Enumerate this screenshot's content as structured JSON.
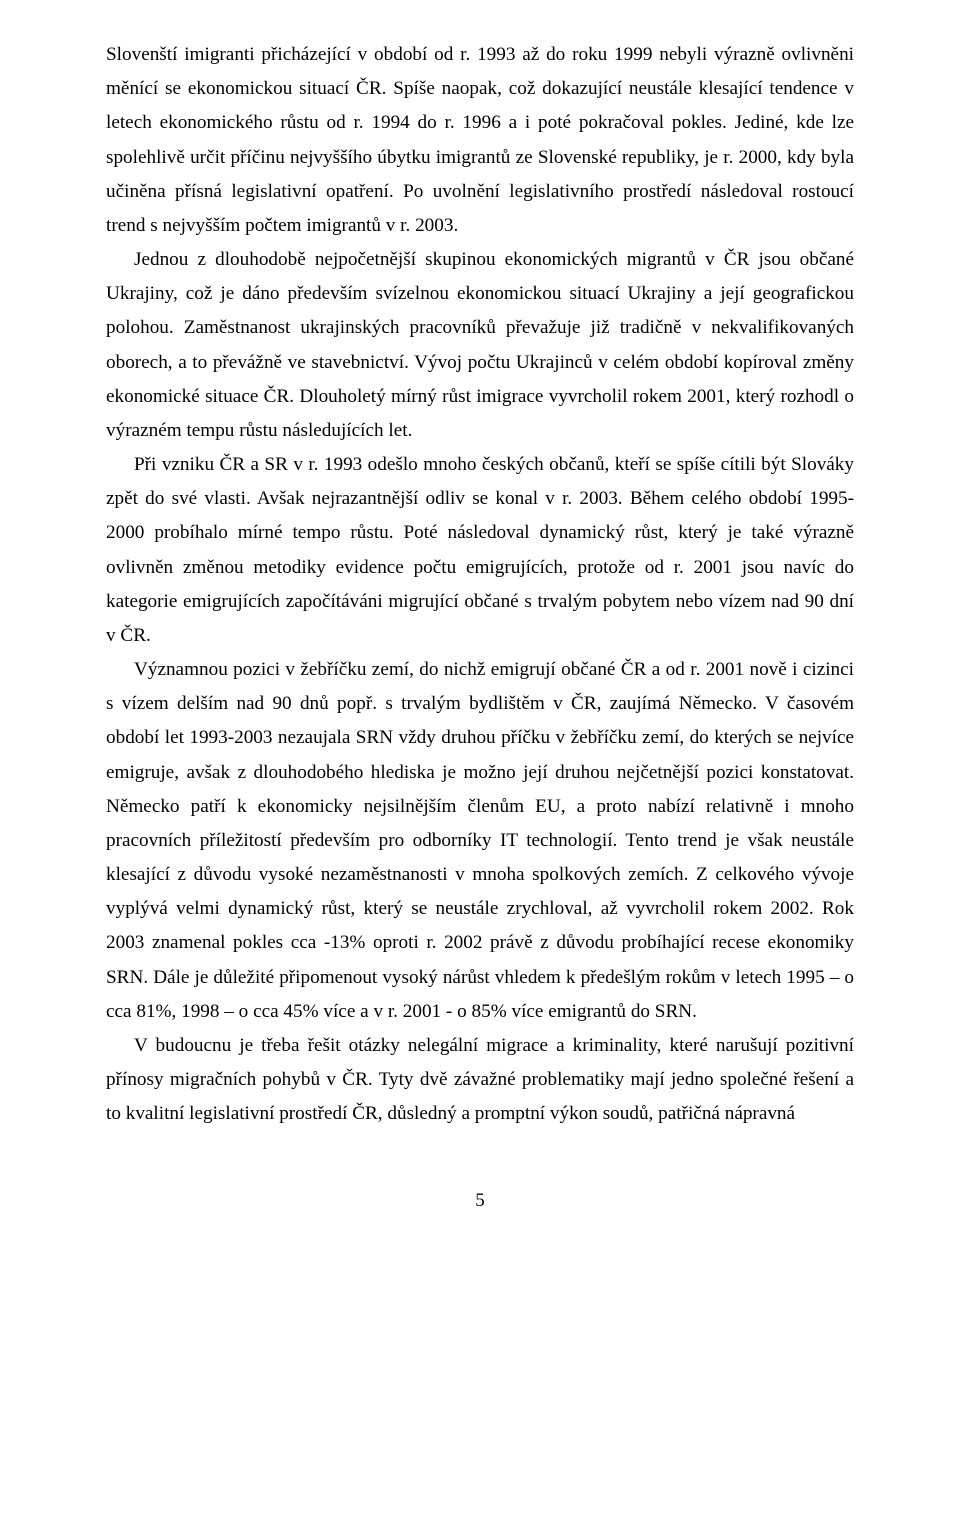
{
  "paragraphs": {
    "p1": "Slovenští imigranti přicházející  v období od r. 1993 až do roku 1999 nebyli výrazně ovlivněni měnící se ekonomickou situací ČR. Spíše naopak, což dokazující neustále klesající tendence v letech ekonomického růstu od r. 1994 do r. 1996 a i poté pokračoval pokles. Jediné, kde lze spolehlivě určit příčinu nejvyššího úbytku imigrantů ze Slovenské republiky, je r. 2000, kdy byla učiněna přísná legislativní opatření. Po uvolnění legislativního prostředí následoval rostoucí trend s nejvyšším počtem imigrantů v r. 2003.",
    "p2": "Jednou z dlouhodobě nejpočetnější skupinou ekonomických migrantů v ČR jsou občané Ukrajiny, což je dáno především svízelnou  ekonomickou situací Ukrajiny a její geografickou polohou.  Zaměstnanost ukrajinských pracovníků převažuje již tradičně v nekvalifikovaných oborech, a to převážně ve stavebnictví. Vývoj počtu Ukrajinců v celém období kopíroval změny ekonomické situace ČR. Dlouholetý mírný růst imigrace vyvrcholil  rokem 2001, který rozhodl o výrazném tempu růstu  následujících let.",
    "p3": "Při vzniku ČR a SR v r. 1993 odešlo mnoho českých občanů, kteří se spíše cítili být Slováky  zpět do své vlasti. Avšak nejrazantnější odliv se konal v r. 2003. Během celého období 1995-2000 probíhalo mírné tempo růstu.  Poté následoval dynamický růst, který je také výrazně ovlivněn změnou metodiky evidence počtu emigrujících, protože od r. 2001 jsou navíc do kategorie emigrujících započítáváni migrující občané s trvalým pobytem nebo vízem nad 90 dní v ČR.",
    "p4": "Významnou pozici v žebříčku zemí, do nichž emigrují občané ČR a od r. 2001 nově i cizinci  s vízem delším nad 90 dnů popř.  s trvalým bydlištěm v ČR, zaujímá Německo. V časovém období let  1993-2003 nezaujala  SRN  vždy druhou příčku v žebříčku zemí, do kterých se nejvíce emigruje, avšak z dlouhodobého hlediska je možno její druhou nejčetnější pozici konstatovat. Německo patří k ekonomicky nejsilnějším členům EU, a proto nabízí relativně i mnoho pracovních příležitostí především pro odborníky IT technologií.  Tento trend je však neustále klesající z důvodu vysoké nezaměstnanosti v mnoha spolkových zemích. Z celkového vývoje vyplývá velmi dynamický růst, který se neustále zrychloval, až vyvrcholil rokem 2002. Rok 2003 znamenal pokles cca -13% oproti r. 2002 právě z důvodu probíhající recese ekonomiky SRN.  Dále je důležité připomenout vysoký nárůst vhledem k předešlým rokům v letech 1995 – o cca 81%, 1998 – o cca 45% více a v r. 2001 - o 85% více emigrantů do SRN.",
    "p5": "V budoucnu je třeba řešit  otázky nelegální migrace a kriminality,  které narušují pozitivní přínosy migračních pohybů v ČR. Tyty dvě závažné problematiky mají jedno společné řešení a to kvalitní legislativní prostředí ČR, důsledný a promptní výkon soudů, patřičná nápravná"
  },
  "pageNumber": "5"
}
